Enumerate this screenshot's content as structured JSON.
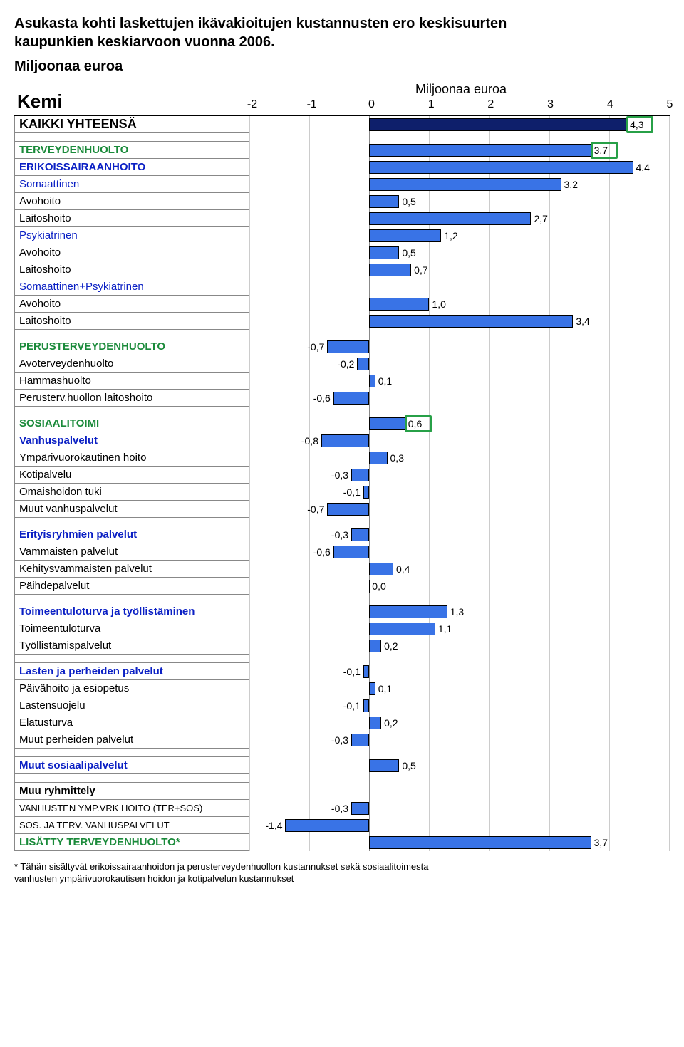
{
  "title_line1": "Asukasta kohti laskettujen ikävakioitujen kustannusten ero keskisuurten",
  "title_line2": "kaupunkien keskiarvoon vuonna 2006.",
  "subtitle": "Miljoonaa euroa",
  "city": "Kemi",
  "axis_title": "Miljoonaa euroa",
  "xmin": -2,
  "xmax": 5,
  "ticks": [
    -2,
    -1,
    0,
    1,
    2,
    3,
    4,
    5
  ],
  "colors": {
    "bar_default": "#3973e6",
    "bar_outline": "#000000",
    "total_bar": "#0e1f6b",
    "grid": "#cfcfcf",
    "zero": "#888888",
    "highlight": "#27a047",
    "green_text": "#1a8a3a",
    "blue_text": "#0b20c4",
    "black_text": "#000000"
  },
  "rows": [
    {
      "label": "KAIKKI YHTEENSÄ",
      "value": 4.3,
      "bold": true,
      "barColor": "#0e1f6b",
      "highlight": true,
      "size": 18
    },
    {
      "spacer": true
    },
    {
      "label": "TERVEYDENHUOLTO",
      "value": 3.7,
      "color": "#1a8a3a",
      "bold": true,
      "highlight": true
    },
    {
      "label": "ERIKOISSAIRAANHOITO",
      "value": 4.4,
      "color": "#0b20c4",
      "bold": true
    },
    {
      "label": "Somaattinen",
      "value": 3.2,
      "color": "#0b20c4"
    },
    {
      "label": "Avohoito",
      "value": 0.5
    },
    {
      "label": "Laitoshoito",
      "value": 2.7
    },
    {
      "label": "Psykiatrinen",
      "value": 1.2,
      "color": "#0b20c4"
    },
    {
      "label": "Avohoito",
      "value": 0.5
    },
    {
      "label": "Laitoshoito",
      "value": 0.7
    },
    {
      "label": "Somaattinen+Psykiatrinen",
      "color": "#0b20c4",
      "nobar": true
    },
    {
      "label": "Avohoito",
      "value": 1.0
    },
    {
      "label": "Laitoshoito",
      "value": 3.4
    },
    {
      "spacer": true
    },
    {
      "label": "PERUSTERVEYDENHUOLTO",
      "value": -0.7,
      "color": "#1a8a3a",
      "bold": true
    },
    {
      "label": "Avoterveydenhuolto",
      "value": -0.2
    },
    {
      "label": "Hammashuolto",
      "value": 0.1
    },
    {
      "label": "Perusterv.huollon laitoshoito",
      "value": -0.6
    },
    {
      "spacer": true
    },
    {
      "label": "SOSIAALITOIMI",
      "value": 0.6,
      "color": "#1a8a3a",
      "bold": true,
      "highlight": true
    },
    {
      "label": "Vanhuspalvelut",
      "value": -0.8,
      "color": "#0b20c4",
      "bold": true
    },
    {
      "label": "Ympärivuorokautinen hoito",
      "value": 0.3
    },
    {
      "label": "Kotipalvelu",
      "value": -0.3
    },
    {
      "label": "Omaishoidon tuki",
      "value": -0.1
    },
    {
      "label": "Muut vanhuspalvelut",
      "value": -0.7
    },
    {
      "spacer": true
    },
    {
      "label": "Erityisryhmien palvelut",
      "value": -0.3,
      "color": "#0b20c4",
      "bold": true
    },
    {
      "label": "Vammaisten palvelut",
      "value": -0.6
    },
    {
      "label": "Kehitysvammaisten palvelut",
      "value": 0.4
    },
    {
      "label": "Päihdepalvelut",
      "value": 0.0
    },
    {
      "spacer": true
    },
    {
      "label": "Toimeentuloturva ja työllistäminen",
      "value": 1.3,
      "color": "#0b20c4",
      "bold": true
    },
    {
      "label": "Toimeentuloturva",
      "value": 1.1
    },
    {
      "label": "Työllistämispalvelut",
      "value": 0.2
    },
    {
      "spacer": true
    },
    {
      "label": "Lasten ja perheiden palvelut",
      "value": -0.1,
      "color": "#0b20c4",
      "bold": true
    },
    {
      "label": "Päivähoito ja esiopetus",
      "value": 0.1
    },
    {
      "label": "Lastensuojelu",
      "value": -0.1
    },
    {
      "label": "Elatusturva",
      "value": 0.2
    },
    {
      "label": "Muut perheiden palvelut",
      "value": -0.3
    },
    {
      "spacer": true
    },
    {
      "label": "Muut sosiaalipalvelut",
      "value": 0.5,
      "color": "#0b20c4",
      "bold": true
    },
    {
      "spacer": true
    },
    {
      "label": "Muu ryhmittely",
      "bold": true,
      "nobar": true
    },
    {
      "label": "VANHUSTEN YMP.VRK HOITO (TER+SOS)",
      "value": -0.3,
      "size": 13
    },
    {
      "label": "SOS. JA TERV. VANHUSPALVELUT",
      "value": -1.4,
      "size": 13
    },
    {
      "label": "LISÄTTY TERVEYDENHUOLTO*",
      "value": 3.7,
      "color": "#1a8a3a",
      "bold": true
    }
  ],
  "footnote_line1": "* Tähän sisältyvät erikoissairaanhoidon ja perusterveydenhuollon kustannukset sekä sosiaalitoimesta",
  "footnote_line2": "vanhusten ympärivuorokautisen hoidon ja kotipalvelun kustannukset"
}
